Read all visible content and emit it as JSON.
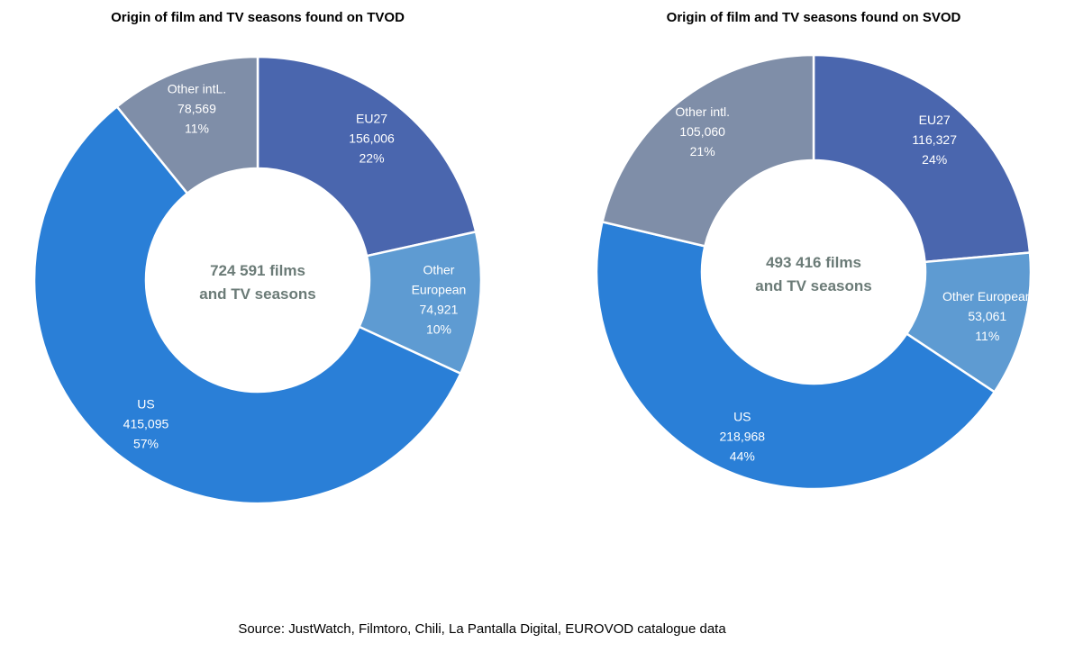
{
  "chart_data": [
    {
      "type": "pie",
      "variant": "donut",
      "title": "Origin of film and TV seasons found on TVOD",
      "center_text": [
        "724 591 films",
        "and TV seasons"
      ],
      "slices": [
        {
          "label": [
            "EU27"
          ],
          "value": 156006,
          "value_text": "156,006",
          "percent": "22%",
          "color": "#4a66ae"
        },
        {
          "label": [
            "Other",
            "European"
          ],
          "value": 74921,
          "value_text": "74,921",
          "percent": "10%",
          "color": "#5e9bd2"
        },
        {
          "label": [
            "US"
          ],
          "value": 415095,
          "value_text": "415,095",
          "percent": "57%",
          "color": "#2a7fd7"
        },
        {
          "label": [
            "Other intL."
          ],
          "value": 78569,
          "value_text": "78,569",
          "percent": "11%",
          "color": "#7f8ea8"
        }
      ]
    },
    {
      "type": "pie",
      "variant": "donut",
      "title": "Origin of film and TV seasons found on SVOD",
      "center_text": [
        "493 416 films",
        "and TV seasons"
      ],
      "slices": [
        {
          "label": [
            "EU27"
          ],
          "value": 116327,
          "value_text": "116,327",
          "percent": "24%",
          "color": "#4a66ae"
        },
        {
          "label": [
            "Other European"
          ],
          "value": 53061,
          "value_text": "53,061",
          "percent": "11%",
          "color": "#5e9bd2"
        },
        {
          "label": [
            "US"
          ],
          "value": 218968,
          "value_text": "218,968",
          "percent": "44%",
          "color": "#2a7fd7"
        },
        {
          "label": [
            "Other intl."
          ],
          "value": 105060,
          "value_text": "105,060",
          "percent": "21%",
          "color": "#7f8ea8"
        }
      ]
    }
  ],
  "source": "Source: JustWatch, Filmtoro, Chili, La Pantalla Digital, EUROVOD catalogue data"
}
